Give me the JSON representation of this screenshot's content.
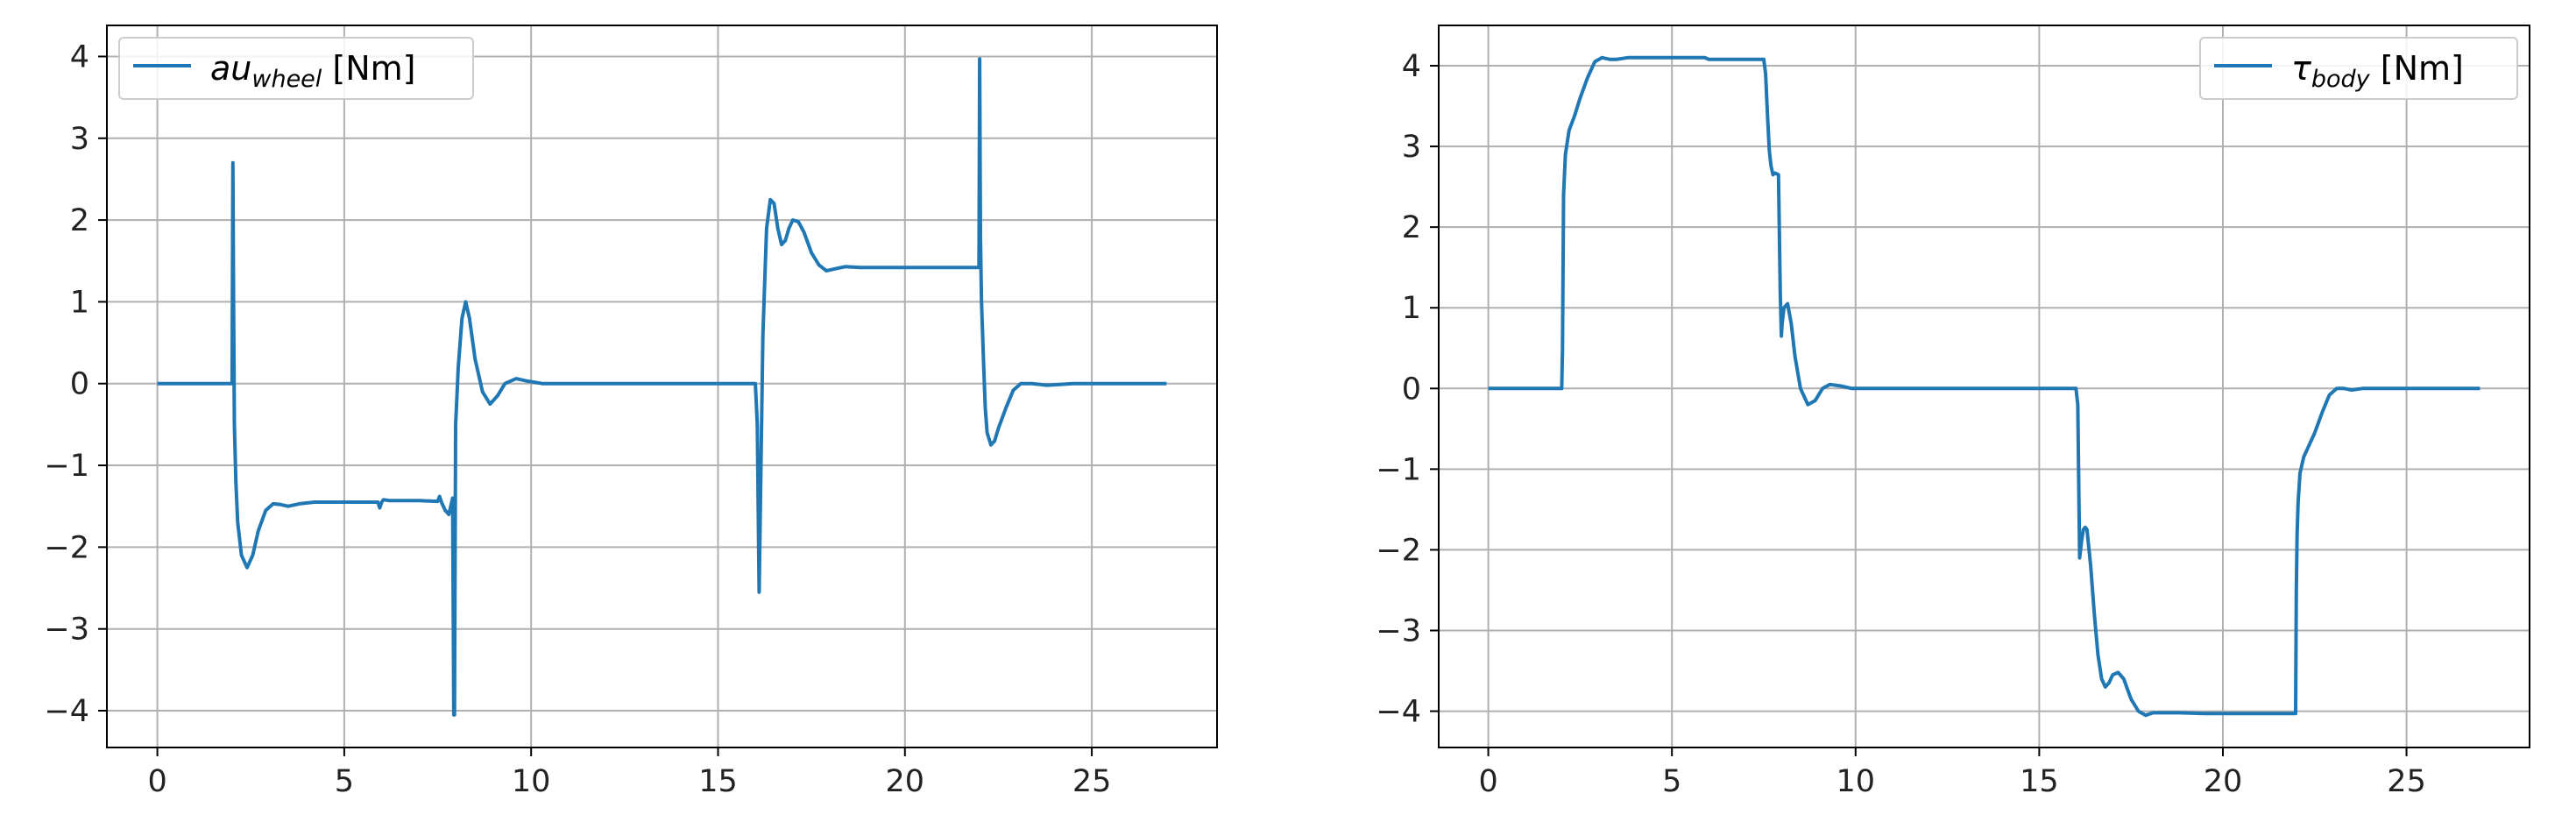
{
  "figure": {
    "background": "#ffffff"
  },
  "chart_data": [
    {
      "type": "line",
      "title": "",
      "xlabel": "",
      "ylabel": "",
      "xlim": [
        -1.35,
        28.35
      ],
      "ylim": [
        -4.45,
        4.38
      ],
      "xticks": [
        0,
        5,
        10,
        15,
        20,
        25
      ],
      "yticks": [
        -4,
        -3,
        -2,
        -1,
        0,
        1,
        2,
        3,
        4
      ],
      "ytick_labels": [
        "−4",
        "−3",
        "−2",
        "−1",
        "0",
        "1",
        "2",
        "3",
        "4"
      ],
      "grid": true,
      "legend": {
        "placement": "top-left"
      },
      "series": [
        {
          "name": "au",
          "name_subscript": "wheel",
          "name_suffix": " [Nm]",
          "color": "#1f77b4",
          "x": [
            0,
            2.0,
            2.02,
            2.04,
            2.06,
            2.1,
            2.15,
            2.25,
            2.4,
            2.55,
            2.7,
            2.9,
            3.1,
            3.3,
            3.5,
            3.8,
            4.2,
            5.0,
            5.9,
            5.95,
            6.0,
            6.05,
            6.2,
            7.0,
            7.5,
            7.55,
            7.6,
            7.7,
            7.8,
            7.85,
            7.9,
            7.93,
            7.95,
            7.98,
            8.0,
            8.05,
            8.15,
            8.25,
            8.35,
            8.5,
            8.7,
            8.9,
            9.1,
            9.3,
            9.6,
            9.9,
            10.3,
            11.0,
            12.0,
            14.0,
            16.0,
            16.05,
            16.1,
            16.15,
            16.2,
            16.3,
            16.4,
            16.5,
            16.6,
            16.7,
            16.8,
            16.9,
            17.0,
            17.15,
            17.3,
            17.5,
            17.7,
            17.9,
            18.1,
            18.4,
            18.8,
            19.5,
            20.5,
            21.5,
            21.98,
            22.0,
            22.02,
            22.05,
            22.1,
            22.15,
            22.2,
            22.3,
            22.4,
            22.5,
            22.7,
            22.9,
            23.1,
            23.4,
            23.8,
            24.5,
            25.5,
            27.0
          ],
          "y": [
            0,
            0,
            2.7,
            1.0,
            -0.5,
            -1.2,
            -1.7,
            -2.1,
            -2.25,
            -2.1,
            -1.8,
            -1.55,
            -1.47,
            -1.48,
            -1.5,
            -1.47,
            -1.45,
            -1.45,
            -1.45,
            -1.52,
            -1.45,
            -1.42,
            -1.43,
            -1.43,
            -1.44,
            -1.38,
            -1.45,
            -1.55,
            -1.6,
            -1.5,
            -1.4,
            -4.05,
            -4.05,
            -0.5,
            -0.3,
            0.2,
            0.8,
            1.0,
            0.8,
            0.3,
            -0.1,
            -0.25,
            -0.15,
            0.0,
            0.06,
            0.03,
            0.0,
            0.0,
            0.0,
            0.0,
            0.0,
            -0.5,
            -2.55,
            -1.0,
            0.6,
            1.9,
            2.25,
            2.2,
            1.9,
            1.7,
            1.75,
            1.9,
            2.0,
            1.98,
            1.85,
            1.6,
            1.45,
            1.38,
            1.4,
            1.43,
            1.42,
            1.42,
            1.42,
            1.42,
            1.42,
            3.97,
            1.8,
            1.0,
            0.3,
            -0.3,
            -0.6,
            -0.75,
            -0.7,
            -0.55,
            -0.3,
            -0.08,
            0.0,
            0.0,
            -0.02,
            0.0,
            0.0,
            0.0
          ]
        }
      ]
    },
    {
      "type": "line",
      "title": "",
      "xlabel": "",
      "ylabel": "",
      "xlim": [
        -1.35,
        28.35
      ],
      "ylim": [
        -4.45,
        4.5
      ],
      "xticks": [
        0,
        5,
        10,
        15,
        20,
        25
      ],
      "yticks": [
        -4,
        -3,
        -2,
        -1,
        0,
        1,
        2,
        3,
        4
      ],
      "ytick_labels": [
        "−4",
        "−3",
        "−2",
        "−1",
        "0",
        "1",
        "2",
        "3",
        "4"
      ],
      "grid": true,
      "legend": {
        "placement": "top-right"
      },
      "series": [
        {
          "name": "τ",
          "name_subscript": "body",
          "name_suffix": " [Nm]",
          "color": "#1f77b4",
          "x": [
            0,
            2.0,
            2.02,
            2.05,
            2.1,
            2.2,
            2.35,
            2.5,
            2.7,
            2.9,
            3.1,
            3.3,
            3.5,
            3.8,
            4.2,
            5.0,
            5.9,
            6.0,
            7.0,
            7.5,
            7.55,
            7.6,
            7.65,
            7.7,
            7.75,
            7.8,
            7.9,
            7.95,
            7.98,
            8.0,
            8.05,
            8.15,
            8.25,
            8.35,
            8.5,
            8.7,
            8.9,
            9.1,
            9.3,
            9.6,
            9.9,
            10.3,
            11.0,
            13.0,
            16.0,
            16.05,
            16.1,
            16.15,
            16.2,
            16.25,
            16.3,
            16.4,
            16.5,
            16.6,
            16.7,
            16.8,
            16.9,
            17.0,
            17.15,
            17.3,
            17.5,
            17.7,
            17.9,
            18.1,
            18.4,
            18.8,
            19.5,
            20.5,
            21.5,
            21.98,
            22.0,
            22.02,
            22.05,
            22.1,
            22.2,
            22.3,
            22.5,
            22.7,
            22.9,
            23.1,
            23.3,
            23.5,
            23.8,
            24.5,
            25.5,
            27.0
          ],
          "y": [
            0,
            0,
            0.5,
            2.4,
            2.9,
            3.2,
            3.38,
            3.6,
            3.85,
            4.05,
            4.1,
            4.08,
            4.08,
            4.1,
            4.1,
            4.1,
            4.1,
            4.08,
            4.08,
            4.08,
            3.9,
            3.4,
            2.95,
            2.75,
            2.65,
            2.67,
            2.65,
            1.2,
            0.65,
            0.8,
            1.0,
            1.05,
            0.8,
            0.4,
            0.0,
            -0.2,
            -0.15,
            0.0,
            0.05,
            0.03,
            0.0,
            0.0,
            0.0,
            0.0,
            0.0,
            -0.2,
            -2.1,
            -1.9,
            -1.75,
            -1.72,
            -1.75,
            -2.2,
            -2.8,
            -3.3,
            -3.6,
            -3.7,
            -3.65,
            -3.55,
            -3.52,
            -3.6,
            -3.85,
            -4.0,
            -4.05,
            -4.02,
            -4.02,
            -4.02,
            -4.03,
            -4.03,
            -4.03,
            -4.03,
            -2.5,
            -1.8,
            -1.4,
            -1.05,
            -0.85,
            -0.75,
            -0.55,
            -0.3,
            -0.08,
            0.0,
            0.0,
            -0.02,
            0.0,
            0.0,
            0.0,
            0.0
          ]
        }
      ]
    }
  ]
}
